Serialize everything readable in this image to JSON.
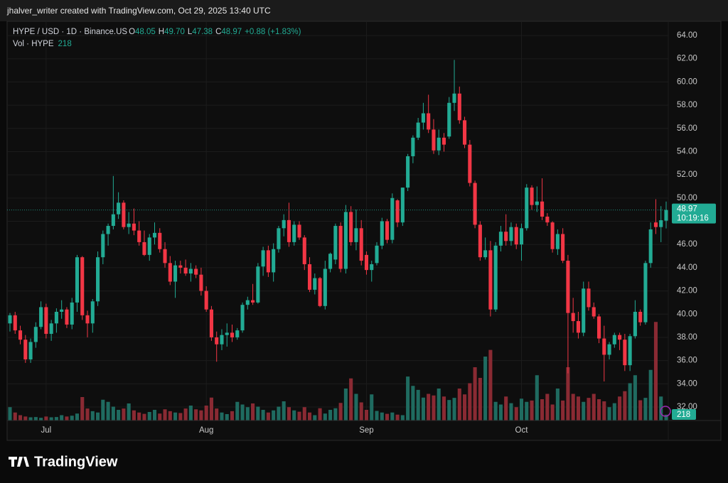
{
  "header": "jhalver_writer created with TradingView.com, Oct 29, 2025 13:40 UTC",
  "logo": "TradingView",
  "chart_data": {
    "type": "candlestick",
    "symbol": "HYPE / USD · 1D · Binance.US",
    "legend_keys": [
      "O",
      "H",
      "L",
      "C"
    ],
    "last_labels": {
      "open": "48.05",
      "high": "49.70",
      "low": "47.38",
      "close": "48.97",
      "change": "+0.88 (+1.83%)"
    },
    "countdown": "10:19:16",
    "volume_label": "Vol · HYPE",
    "up_color": "#22ab94",
    "down_color": "#f23645",
    "up_volume_color": "#1f6b60",
    "down_volume_color": "#8a2a33",
    "grid": true,
    "xlim": [
      0,
      127
    ],
    "xticks": [
      {
        "value": 7,
        "label": "Jul"
      },
      {
        "value": 38,
        "label": "Aug"
      },
      {
        "value": 69,
        "label": "Sep"
      },
      {
        "value": 99,
        "label": "Oct"
      }
    ],
    "ylim": [
      32,
      64
    ],
    "yticks": [
      {
        "value": 32,
        "label": "32.00"
      },
      {
        "value": 34,
        "label": "34.00"
      },
      {
        "value": 36,
        "label": "36.00"
      },
      {
        "value": 38,
        "label": "38.00"
      },
      {
        "value": 40,
        "label": "40.00"
      },
      {
        "value": 42,
        "label": "42.00"
      },
      {
        "value": 44,
        "label": "44.00"
      },
      {
        "value": 46,
        "label": "46.00"
      },
      {
        "value": 48,
        "label": "48.00"
      },
      {
        "value": 50,
        "label": "50.00"
      },
      {
        "value": 52,
        "label": "52.00"
      },
      {
        "value": 54,
        "label": "54.00"
      },
      {
        "value": 56,
        "label": "56.00"
      },
      {
        "value": 58,
        "label": "58.00"
      },
      {
        "value": 60,
        "label": "60.00"
      },
      {
        "value": 62,
        "label": "62.00"
      },
      {
        "value": 64,
        "label": "64.00"
      }
    ],
    "vlim": [
      0,
      4000
    ],
    "candles": [
      [
        39.2,
        40.1,
        38.5,
        39.9
      ],
      [
        39.9,
        40.2,
        38.3,
        38.6
      ],
      [
        38.6,
        39,
        37.4,
        37.8
      ],
      [
        37.8,
        38.2,
        35.8,
        36.1
      ],
      [
        36.1,
        37.9,
        35.8,
        37.6
      ],
      [
        37.6,
        39.3,
        37.1,
        38.9
      ],
      [
        38.9,
        41.1,
        38.7,
        40.6
      ],
      [
        40.6,
        40.9,
        37.9,
        38.3
      ],
      [
        38.3,
        39.5,
        37.7,
        39.2
      ],
      [
        39.2,
        40.5,
        38.4,
        40.2
      ],
      [
        40.2,
        41.2,
        39.6,
        40.4
      ],
      [
        40.4,
        40.6,
        38.8,
        39.1
      ],
      [
        39.1,
        41.4,
        38.7,
        41.0
      ],
      [
        41.0,
        45.1,
        40.2,
        44.9
      ],
      [
        44.9,
        45.0,
        39.5,
        39.9
      ],
      [
        39.9,
        40.3,
        38.0,
        39.2
      ],
      [
        39.2,
        41.3,
        38.4,
        41.1
      ],
      [
        41.1,
        45.4,
        40.7,
        44.9
      ],
      [
        44.9,
        47.2,
        44.3,
        46.9
      ],
      [
        46.9,
        47.8,
        45.9,
        47.6
      ],
      [
        47.6,
        51.9,
        47.3,
        48.6
      ],
      [
        48.6,
        50.5,
        48.2,
        49.6
      ],
      [
        49.6,
        49.8,
        47.3,
        47.5
      ],
      [
        47.5,
        48.8,
        46.9,
        47.8
      ],
      [
        47.8,
        49.1,
        46.8,
        47.2
      ],
      [
        47.2,
        48.0,
        45.9,
        46.2
      ],
      [
        46.2,
        47.2,
        45.0,
        45.1
      ],
      [
        45.1,
        46.9,
        44.6,
        46.6
      ],
      [
        46.6,
        47.9,
        46.0,
        47.0
      ],
      [
        47.0,
        47.4,
        45.3,
        45.6
      ],
      [
        45.6,
        46.2,
        44.0,
        44.4
      ],
      [
        44.4,
        45.0,
        42.5,
        42.8
      ],
      [
        42.8,
        44.6,
        41.4,
        44.2
      ],
      [
        44.2,
        44.6,
        43.5,
        44.0
      ],
      [
        44.0,
        44.7,
        43.3,
        43.5
      ],
      [
        43.5,
        44.4,
        42.8,
        43.9
      ],
      [
        43.9,
        44.2,
        43.1,
        43.4
      ],
      [
        43.4,
        44.0,
        41.6,
        42.0
      ],
      [
        42.0,
        42.4,
        40.2,
        40.4
      ],
      [
        40.4,
        40.7,
        37.7,
        38.0
      ],
      [
        38.0,
        38.5,
        35.9,
        37.4
      ],
      [
        37.4,
        38.7,
        36.9,
        38.2
      ],
      [
        38.2,
        39.2,
        37.2,
        38.4
      ],
      [
        38.4,
        39.1,
        37.6,
        38.0
      ],
      [
        38.0,
        38.8,
        37.8,
        38.6
      ],
      [
        38.6,
        41.0,
        38.4,
        40.8
      ],
      [
        40.8,
        41.5,
        40.4,
        41.2
      ],
      [
        41.2,
        42.6,
        40.8,
        41.0
      ],
      [
        41.0,
        44.4,
        40.9,
        44.1
      ],
      [
        44.1,
        45.8,
        43.3,
        45.5
      ],
      [
        45.5,
        45.9,
        43.2,
        43.6
      ],
      [
        43.6,
        46.1,
        42.8,
        45.6
      ],
      [
        45.6,
        47.6,
        45.3,
        47.4
      ],
      [
        47.4,
        48.6,
        46.7,
        48.1
      ],
      [
        48.1,
        49.6,
        45.8,
        46.2
      ],
      [
        46.2,
        48.0,
        45.9,
        47.7
      ],
      [
        47.7,
        48.0,
        46.4,
        46.6
      ],
      [
        46.6,
        46.8,
        43.8,
        44.3
      ],
      [
        44.3,
        44.9,
        41.9,
        42.1
      ],
      [
        42.1,
        43.5,
        41.7,
        43.1
      ],
      [
        43.1,
        43.2,
        40.6,
        40.7
      ],
      [
        40.7,
        44.6,
        40.4,
        43.9
      ],
      [
        43.9,
        45.3,
        43.6,
        45.2
      ],
      [
        44.7,
        47.8,
        44.3,
        47.6
      ],
      [
        47.6,
        47.9,
        43.6,
        43.9
      ],
      [
        43.9,
        49.4,
        43.5,
        48.8
      ],
      [
        48.8,
        49.3,
        45.9,
        46.2
      ],
      [
        46.2,
        49.0,
        45.5,
        47.4
      ],
      [
        47.4,
        48.1,
        44.2,
        44.6
      ],
      [
        45.1,
        45.4,
        43.4,
        43.8
      ],
      [
        43.8,
        44.6,
        42.8,
        44.3
      ],
      [
        44.4,
        46.2,
        44.2,
        45.9
      ],
      [
        45.9,
        48.3,
        45.6,
        48.0
      ],
      [
        48.0,
        48.2,
        46.1,
        46.4
      ],
      [
        46.4,
        50.4,
        46.1,
        50.0
      ],
      [
        49.8,
        49.9,
        47.5,
        47.9
      ],
      [
        47.9,
        50.9,
        47.6,
        50.9
      ],
      [
        50.9,
        53.8,
        50.6,
        53.6
      ],
      [
        53.6,
        55.4,
        53.0,
        55.2
      ],
      [
        55.2,
        56.9,
        55.0,
        56.5
      ],
      [
        56.5,
        58.2,
        55.9,
        57.3
      ],
      [
        57.3,
        58.9,
        55.6,
        55.9
      ],
      [
        55.9,
        56.8,
        53.8,
        54.1
      ],
      [
        54.1,
        55.9,
        53.7,
        55.2
      ],
      [
        55.2,
        55.6,
        54.0,
        54.6
      ],
      [
        55.3,
        58.7,
        55.1,
        58.2
      ],
      [
        58.2,
        61.9,
        57.5,
        59.0
      ],
      [
        59.0,
        59.6,
        56.4,
        56.7
      ],
      [
        56.7,
        57.0,
        54.3,
        54.6
      ],
      [
        54.6,
        55.0,
        51.0,
        51.3
      ],
      [
        51.3,
        51.5,
        47.4,
        47.7
      ],
      [
        47.7,
        48.0,
        44.6,
        44.9
      ],
      [
        44.9,
        46.6,
        44.7,
        45.5
      ],
      [
        45.5,
        46.3,
        39.8,
        40.4
      ],
      [
        40.4,
        46.2,
        40.2,
        45.9
      ],
      [
        45.9,
        47.6,
        45.4,
        47.1
      ],
      [
        47.1,
        48.6,
        45.9,
        46.3
      ],
      [
        46.3,
        47.9,
        45.9,
        47.5
      ],
      [
        47.5,
        47.8,
        45.6,
        46.0
      ],
      [
        46.0,
        47.8,
        44.6,
        47.4
      ],
      [
        47.4,
        51.2,
        47.2,
        50.9
      ],
      [
        50.9,
        51.1,
        49.0,
        49.4
      ],
      [
        49.4,
        51.0,
        48.8,
        49.7
      ],
      [
        49.7,
        51.7,
        48.1,
        48.4
      ],
      [
        48.4,
        48.7,
        47.6,
        47.9
      ],
      [
        47.9,
        48.0,
        45.3,
        45.6
      ],
      [
        45.6,
        47.3,
        45.1,
        46.9
      ],
      [
        46.9,
        47.4,
        44.4,
        44.6
      ],
      [
        44.6,
        45.1,
        34.9,
        40.1
      ],
      [
        40.1,
        41.4,
        38.4,
        39.4
      ],
      [
        39.4,
        40.2,
        37.9,
        38.4
      ],
      [
        38.4,
        42.8,
        38.1,
        42.2
      ],
      [
        42.2,
        42.8,
        40.3,
        40.6
      ],
      [
        40.6,
        41.0,
        39.6,
        39.8
      ],
      [
        39.8,
        40.0,
        37.5,
        37.9
      ],
      [
        37.9,
        39.0,
        34.2,
        36.5
      ],
      [
        36.5,
        37.6,
        36.1,
        37.4
      ],
      [
        37.4,
        38.4,
        37.1,
        38.2
      ],
      [
        38.2,
        38.4,
        36.9,
        37.8
      ],
      [
        37.8,
        38.3,
        35.1,
        35.6
      ],
      [
        35.6,
        38.3,
        35.1,
        38.1
      ],
      [
        38.1,
        41.2,
        37.9,
        40.2
      ],
      [
        40.2,
        40.4,
        39.0,
        39.3
      ],
      [
        39.3,
        44.6,
        39.1,
        44.4
      ],
      [
        44.4,
        47.9,
        44.0,
        47.3
      ],
      [
        47.9,
        49.9,
        46.9,
        47.5
      ],
      [
        47.5,
        49.3,
        46.2,
        48.09
      ],
      [
        48.05,
        49.7,
        47.38,
        48.97
      ]
    ],
    "volume": [
      500,
      300,
      200,
      150,
      120,
      130,
      100,
      150,
      120,
      130,
      200,
      150,
      180,
      260,
      880,
      450,
      350,
      300,
      780,
      700,
      520,
      400,
      450,
      640,
      380,
      300,
      250,
      320,
      400,
      260,
      420,
      350,
      300,
      280,
      450,
      560,
      420,
      380,
      560,
      860,
      450,
      300,
      240,
      350,
      700,
      600,
      500,
      640,
      520,
      400,
      300,
      380,
      520,
      720,
      500,
      380,
      330,
      500,
      300,
      200,
      460,
      260,
      400,
      460,
      660,
      1200,
      1580,
      1000,
      680,
      400,
      980,
      360,
      300,
      250,
      300,
      220,
      200,
      1650,
      1300,
      1150,
      860,
      1000,
      940,
      1200,
      900,
      770,
      850,
      1200,
      980,
      1400,
      2000,
      1600,
      2400,
      2650,
      700,
      600,
      900,
      650,
      500,
      820,
      700,
      750,
      1700,
      800,
      1000,
      600,
      1200,
      750,
      2000,
      1000,
      900,
      700,
      850,
      1000,
      800,
      720,
      500,
      650,
      900,
      1100,
      1400,
      1700,
      760,
      850,
      1900,
      3700,
      900,
      218
    ]
  }
}
